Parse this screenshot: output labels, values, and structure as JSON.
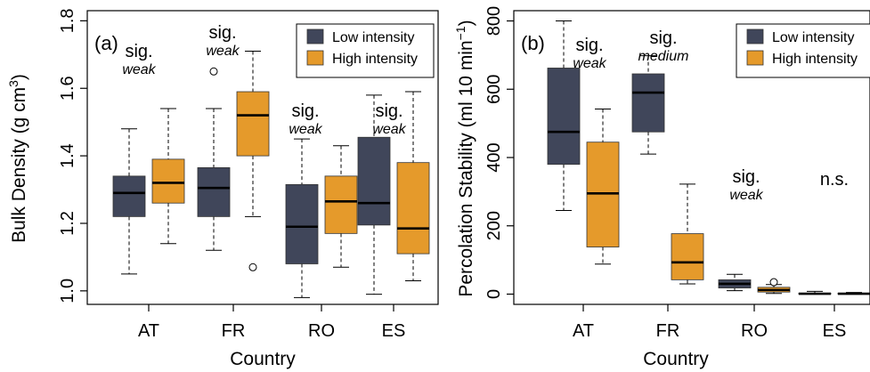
{
  "colors": {
    "low": "#40465a",
    "high": "#e59a2b"
  },
  "chart_data": [
    {
      "type": "box",
      "panel_label": "(a)",
      "xlabel": "Country",
      "ylabel_main": "Bulk Density (g cm",
      "ylabel_sup": "3",
      "ylabel_end": ")",
      "ylim": [
        0.96,
        1.83
      ],
      "yticks": [
        "1.0",
        "1.2",
        "1.4",
        "1.6",
        "1.8"
      ],
      "ytick_values": [
        1.0,
        1.2,
        1.4,
        1.6,
        1.8
      ],
      "categories": [
        "AT",
        "FR",
        "RO",
        "ES"
      ],
      "legend": {
        "position": "top-right",
        "entries": [
          "Low intensity",
          "High intensity"
        ]
      },
      "series": [
        {
          "name": "Low intensity",
          "boxes": [
            {
              "min": 1.05,
              "q1": 1.22,
              "median": 1.29,
              "q3": 1.34,
              "max": 1.48,
              "outliers": []
            },
            {
              "min": 1.12,
              "q1": 1.22,
              "median": 1.305,
              "q3": 1.365,
              "max": 1.54,
              "outliers": [
                1.65
              ]
            },
            {
              "min": 0.98,
              "q1": 1.08,
              "median": 1.19,
              "q3": 1.315,
              "max": 1.45,
              "outliers": []
            },
            {
              "min": 0.99,
              "q1": 1.195,
              "median": 1.26,
              "q3": 1.455,
              "max": 1.58,
              "outliers": []
            }
          ]
        },
        {
          "name": "High intensity",
          "boxes": [
            {
              "min": 1.14,
              "q1": 1.26,
              "median": 1.32,
              "q3": 1.39,
              "max": 1.54,
              "outliers": []
            },
            {
              "min": 1.22,
              "q1": 1.4,
              "median": 1.52,
              "q3": 1.59,
              "max": 1.71,
              "outliers": [
                1.07
              ]
            },
            {
              "min": 1.07,
              "q1": 1.17,
              "median": 1.265,
              "q3": 1.34,
              "max": 1.43,
              "outliers": []
            },
            {
              "min": 1.03,
              "q1": 1.11,
              "median": 1.185,
              "q3": 1.38,
              "max": 1.59,
              "outliers": []
            }
          ]
        }
      ],
      "annotations": [
        {
          "category": "AT",
          "sig": "sig.",
          "level": "weak"
        },
        {
          "category": "FR",
          "sig": "sig.",
          "level": "weak"
        },
        {
          "category": "RO",
          "sig": "sig.",
          "level": "weak"
        },
        {
          "category": "ES",
          "sig": "sig.",
          "level": "weak"
        }
      ]
    },
    {
      "type": "box",
      "panel_label": "(b)",
      "xlabel": "Country",
      "ylabel_main": "Percolation Stability (ml 10 min",
      "ylabel_sup": "−1",
      "ylabel_end": ")",
      "ylim": [
        -30,
        830
      ],
      "yticks": [
        "0",
        "200",
        "400",
        "600",
        "800"
      ],
      "ytick_values": [
        0,
        200,
        400,
        600,
        800
      ],
      "categories": [
        "AT",
        "FR",
        "RO",
        "ES"
      ],
      "legend": {
        "position": "top-right",
        "entries": [
          "Low intensity",
          "High intensity"
        ]
      },
      "series": [
        {
          "name": "Low intensity",
          "boxes": [
            {
              "min": 245,
              "q1": 380,
              "median": 475,
              "q3": 662,
              "max": 800,
              "outliers": []
            },
            {
              "min": 410,
              "q1": 475,
              "median": 590,
              "q3": 645,
              "max": 698,
              "outliers": []
            },
            {
              "min": 10,
              "q1": 18,
              "median": 30,
              "q3": 42,
              "max": 58,
              "outliers": []
            },
            {
              "min": 0,
              "q1": 0,
              "median": 1,
              "q3": 3,
              "max": 8,
              "outliers": []
            }
          ]
        },
        {
          "name": "High intensity",
          "boxes": [
            {
              "min": 88,
              "q1": 138,
              "median": 295,
              "q3": 445,
              "max": 542,
              "outliers": []
            },
            {
              "min": 30,
              "q1": 42,
              "median": 93,
              "q3": 177,
              "max": 322,
              "outliers": []
            },
            {
              "min": 2,
              "q1": 6,
              "median": 12,
              "q3": 20,
              "max": 28,
              "outliers": [
                35
              ]
            },
            {
              "min": 0,
              "q1": 0,
              "median": 1,
              "q3": 3,
              "max": 5,
              "outliers": []
            }
          ]
        }
      ],
      "annotations": [
        {
          "category": "AT",
          "sig": "sig.",
          "level": "weak"
        },
        {
          "category": "FR",
          "sig": "sig.",
          "level": "medium"
        },
        {
          "category": "RO",
          "sig": "sig.",
          "level": "weak"
        },
        {
          "category": "ES",
          "sig": "n.s.",
          "level": ""
        }
      ]
    }
  ]
}
